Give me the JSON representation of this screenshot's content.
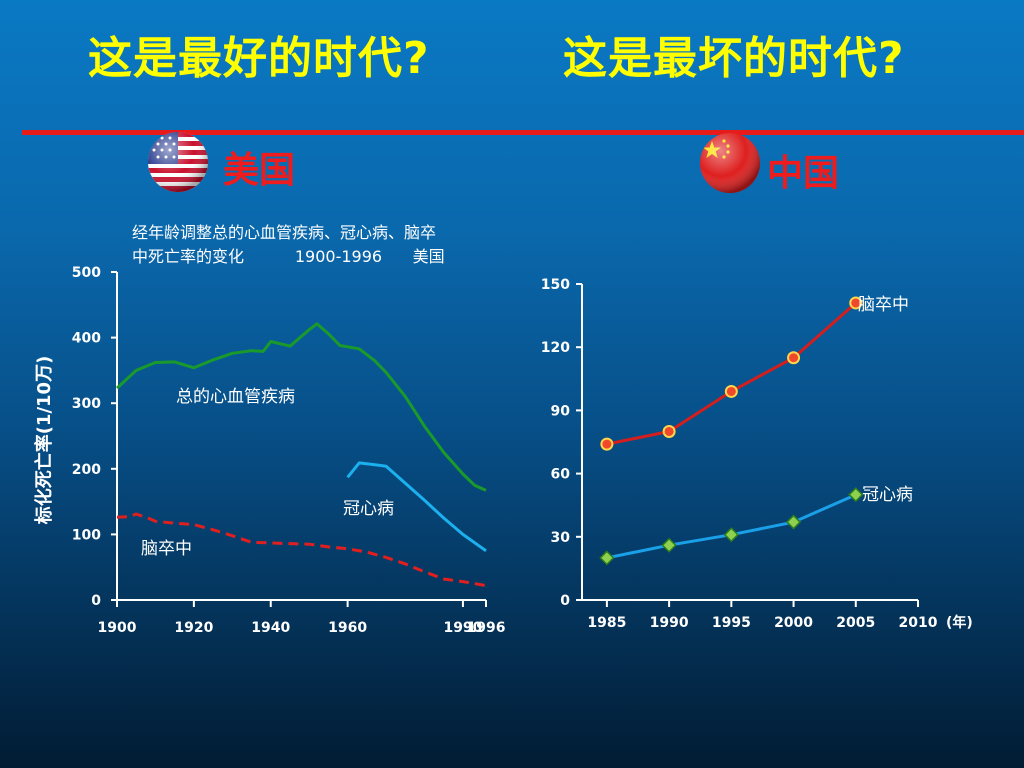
{
  "slide": {
    "title_left": "这是最好的时代?",
    "title_right": "这是最坏的时代?",
    "country_us": "美国",
    "country_cn": "中国"
  },
  "colors": {
    "title": "#ffff00",
    "country_label": "#ee1c1c",
    "divider": "#e81b1b",
    "cvd_total": "#1b9a2c",
    "chd": "#1bb0ee",
    "stroke": "#e01f1f",
    "china_stroke": "#d41e1e",
    "china_chd": "#1aa0e8"
  },
  "icons": {
    "us_flag": "us-flag-icon",
    "cn_flag": "china-flag-icon"
  },
  "chart_data": [
    {
      "type": "line",
      "title": "经年龄调整总的心血管疾病、冠心病、脑卒中死亡率的变化          1900-1996      美国",
      "title_lines": [
        "经年龄调整总的心血管疾病、冠心病、脑卒",
        "中死亡率的变化          1900-1996      美国"
      ],
      "xlabel": "",
      "ylabel": "标化死亡率(1/10万)",
      "xlim": [
        1900,
        1996
      ],
      "ylim": [
        0,
        500
      ],
      "x_ticks": [
        "1900",
        "1920",
        "1940",
        "1960",
        "1990",
        "1996"
      ],
      "y_ticks": [
        "500",
        "400",
        "300",
        "200",
        "100",
        "0"
      ],
      "grid": false,
      "series": [
        {
          "name": "总的心血管疾病",
          "style": "solid",
          "x": [
            1900,
            1905,
            1910,
            1915,
            1920,
            1925,
            1930,
            1935,
            1938,
            1940,
            1945,
            1950,
            1952,
            1955,
            1958,
            1960,
            1963,
            1967,
            1970,
            1975,
            1980,
            1985,
            1990,
            1993,
            1996
          ],
          "y": [
            323,
            350,
            362,
            363,
            354,
            366,
            376,
            380,
            379,
            394,
            387,
            412,
            421,
            406,
            388,
            386,
            383,
            365,
            347,
            310,
            265,
            225,
            192,
            175,
            167
          ]
        },
        {
          "name": "冠心病",
          "style": "solid",
          "x": [
            1960,
            1963,
            1966,
            1970,
            1975,
            1980,
            1985,
            1990,
            1996
          ],
          "y": [
            187,
            209,
            207,
            204,
            178,
            152,
            125,
            100,
            75
          ]
        },
        {
          "name": "脑卒中",
          "style": "dashed",
          "x": [
            1900,
            1903,
            1905,
            1908,
            1910,
            1915,
            1920,
            1925,
            1930,
            1935,
            1940,
            1945,
            1950,
            1955,
            1960,
            1965,
            1970,
            1975,
            1980,
            1985,
            1990,
            1996
          ],
          "y": [
            126,
            127,
            131,
            125,
            120,
            117,
            115,
            107,
            98,
            88,
            87,
            86,
            85,
            81,
            78,
            73,
            65,
            55,
            43,
            32,
            28,
            22
          ]
        }
      ]
    },
    {
      "type": "line",
      "title": "",
      "xlabel": "(年)",
      "ylabel": "",
      "xlim": [
        1983,
        2010
      ],
      "ylim": [
        0,
        150
      ],
      "x_ticks": [
        "1985",
        "1990",
        "1995",
        "2000",
        "2005",
        "2010"
      ],
      "y_ticks": [
        "150",
        "120",
        "90",
        "60",
        "30",
        "0"
      ],
      "grid": false,
      "series": [
        {
          "name": "脑卒中",
          "marker": "circle",
          "x": [
            1985,
            1990,
            1995,
            2000,
            2005
          ],
          "y": [
            74,
            80,
            99,
            115,
            141
          ]
        },
        {
          "name": "冠心病",
          "marker": "diamond",
          "x": [
            1985,
            1990,
            1995,
            2000,
            2005
          ],
          "y": [
            20,
            26,
            31,
            37,
            50
          ]
        }
      ]
    }
  ]
}
